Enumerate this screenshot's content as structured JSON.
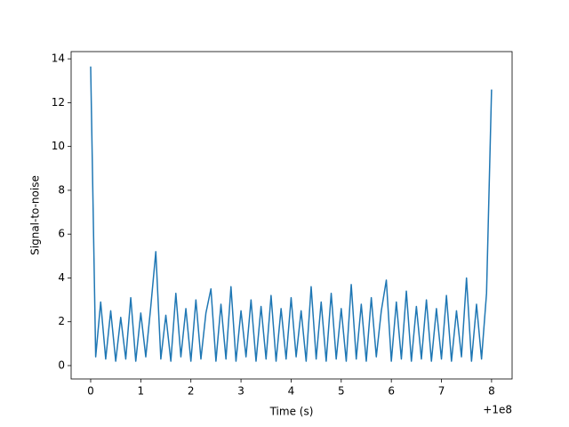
{
  "chart_data": {
    "type": "line",
    "x_label": "Time (s)",
    "y_label": "Signal-to-noise",
    "x_offset_label": "+1e8",
    "x": [
      0,
      0.1,
      0.2,
      0.3,
      0.4,
      0.5,
      0.6,
      0.7,
      0.8,
      0.9,
      1.0,
      1.1,
      1.2,
      1.3,
      1.4,
      1.5,
      1.6,
      1.7,
      1.8,
      1.9,
      2.0,
      2.1,
      2.2,
      2.3,
      2.4,
      2.5,
      2.6,
      2.7,
      2.8,
      2.9,
      3.0,
      3.1,
      3.2,
      3.3,
      3.4,
      3.5,
      3.6,
      3.7,
      3.8,
      3.9,
      4.0,
      4.1,
      4.2,
      4.3,
      4.4,
      4.5,
      4.6,
      4.7,
      4.8,
      4.9,
      5.0,
      5.1,
      5.2,
      5.3,
      5.4,
      5.5,
      5.6,
      5.7,
      5.8,
      5.9,
      6.0,
      6.1,
      6.2,
      6.3,
      6.4,
      6.5,
      6.6,
      6.7,
      6.8,
      6.9,
      7.0,
      7.1,
      7.2,
      7.3,
      7.4,
      7.5,
      7.6,
      7.7,
      7.8,
      7.9,
      8.0
    ],
    "series": [
      {
        "color": "#1f77b4",
        "values": [
          13.65,
          0.4,
          2.9,
          0.3,
          2.5,
          0.2,
          2.2,
          0.3,
          3.1,
          0.2,
          2.4,
          0.4,
          2.7,
          5.2,
          0.3,
          2.3,
          0.2,
          3.3,
          0.4,
          2.6,
          0.2,
          3.0,
          0.3,
          2.4,
          3.5,
          0.2,
          2.8,
          0.3,
          3.6,
          0.2,
          2.5,
          0.4,
          3.0,
          0.2,
          2.7,
          0.3,
          3.2,
          0.2,
          2.6,
          0.3,
          3.1,
          0.4,
          2.5,
          0.2,
          3.6,
          0.3,
          2.9,
          0.2,
          3.3,
          0.3,
          2.6,
          0.2,
          3.7,
          0.3,
          2.8,
          0.2,
          3.1,
          0.4,
          2.5,
          3.9,
          0.2,
          2.9,
          0.3,
          3.4,
          0.2,
          2.7,
          0.3,
          3.0,
          0.2,
          2.6,
          0.3,
          3.2,
          0.2,
          2.5,
          0.4,
          4.0,
          0.2,
          2.8,
          0.3,
          3.3,
          12.6
        ]
      }
    ],
    "xlim": [
      -0.39,
      8.41
    ],
    "ylim": [
      -0.61,
      14.33
    ],
    "xticks": [
      0,
      1,
      2,
      3,
      4,
      5,
      6,
      7,
      8
    ],
    "yticks": [
      0,
      2,
      4,
      6,
      8,
      10,
      12,
      14
    ]
  }
}
